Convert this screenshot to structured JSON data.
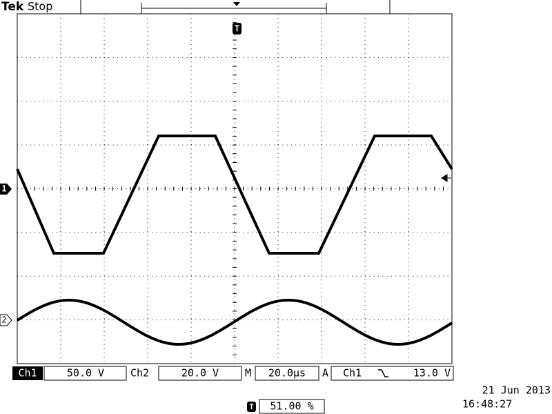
{
  "header": {
    "brand": "Tek",
    "status": "Stop"
  },
  "markers": {
    "trigger": "T",
    "ch1": "1",
    "ch2": "2"
  },
  "status_bar": {
    "ch1_label": "Ch1",
    "ch1_scale": "50.0 V",
    "ch2_label": "Ch2",
    "ch2_scale": "20.0 V",
    "time_label": "M",
    "time_scale": "20.0µs",
    "trigger_label": "A",
    "trigger_source": "Ch1",
    "trigger_level": "13.0 V"
  },
  "date": "21 Jun 2013",
  "time": "16:48:27",
  "trigger_position": "51.00 %"
}
